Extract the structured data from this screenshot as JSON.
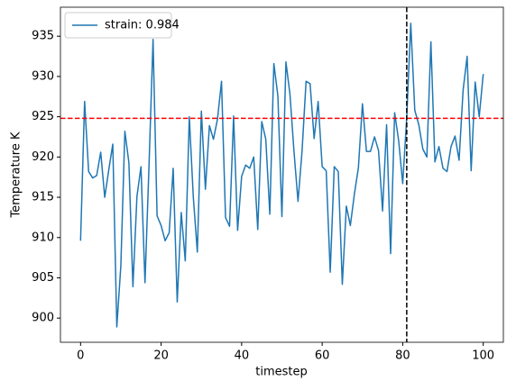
{
  "chart_data": {
    "type": "line",
    "x_label": "timestep",
    "y_label": "Temperature K",
    "x": [
      0,
      1,
      2,
      3,
      4,
      5,
      6,
      7,
      8,
      9,
      10,
      11,
      12,
      13,
      14,
      15,
      16,
      17,
      18,
      19,
      20,
      21,
      22,
      23,
      24,
      25,
      26,
      27,
      28,
      29,
      30,
      31,
      32,
      33,
      34,
      35,
      36,
      37,
      38,
      39,
      40,
      41,
      42,
      43,
      44,
      45,
      46,
      47,
      48,
      49,
      50,
      51,
      52,
      53,
      54,
      55,
      56,
      57,
      58,
      59,
      60,
      61,
      62,
      63,
      64,
      65,
      66,
      67,
      68,
      69,
      70,
      71,
      72,
      73,
      74,
      75,
      76,
      77,
      78,
      79,
      80,
      81,
      82,
      83,
      84,
      85,
      86,
      87,
      88,
      89,
      90,
      91,
      92,
      93,
      94,
      95,
      96,
      97,
      98,
      99,
      100
    ],
    "series": [
      {
        "name": "strain: 0.984",
        "color": "#1f77b4",
        "values": [
          909.6,
          926.9,
          918.2,
          917.4,
          917.7,
          920.6,
          915.0,
          918.4,
          921.6,
          898.9,
          906.5,
          923.2,
          919.3,
          903.9,
          915.1,
          918.8,
          904.4,
          919.0,
          934.6,
          912.7,
          911.5,
          909.6,
          910.6,
          918.6,
          902.0,
          913.1,
          907.1,
          925.0,
          915.0,
          908.2,
          925.7,
          916.0,
          923.9,
          922.2,
          924.7,
          929.4,
          912.5,
          911.4,
          925.1,
          910.9,
          917.6,
          919.0,
          918.6,
          920.0,
          911.0,
          924.4,
          922.2,
          912.9,
          931.6,
          927.6,
          912.6,
          931.8,
          927.8,
          920.7,
          914.5,
          920.7,
          929.4,
          929.1,
          922.3,
          926.9,
          918.8,
          918.3,
          905.7,
          918.8,
          918.2,
          904.2,
          913.9,
          911.5,
          915.4,
          918.7,
          926.6,
          920.7,
          920.7,
          922.5,
          920.8,
          913.3,
          924.0,
          908.0,
          925.5,
          922.0,
          916.7,
          924.9,
          936.6,
          925.8,
          924.0,
          921.0,
          920.0,
          934.3,
          919.4,
          921.3,
          918.6,
          918.2,
          921.3,
          922.6,
          919.6,
          928.3,
          932.5,
          918.3,
          929.3,
          925.0,
          930.3
        ]
      }
    ],
    "hline": {
      "value": 924.8,
      "color": "#ff0000"
    },
    "vline": {
      "value": 81,
      "color": "#000000"
    },
    "xlim": [
      -5,
      105
    ],
    "xticks": [
      0,
      20,
      40,
      60,
      80,
      100
    ],
    "ylim": [
      897,
      938.6
    ],
    "yticks": [
      900,
      905,
      910,
      915,
      920,
      925,
      930,
      935
    ],
    "legend": "upper left"
  }
}
